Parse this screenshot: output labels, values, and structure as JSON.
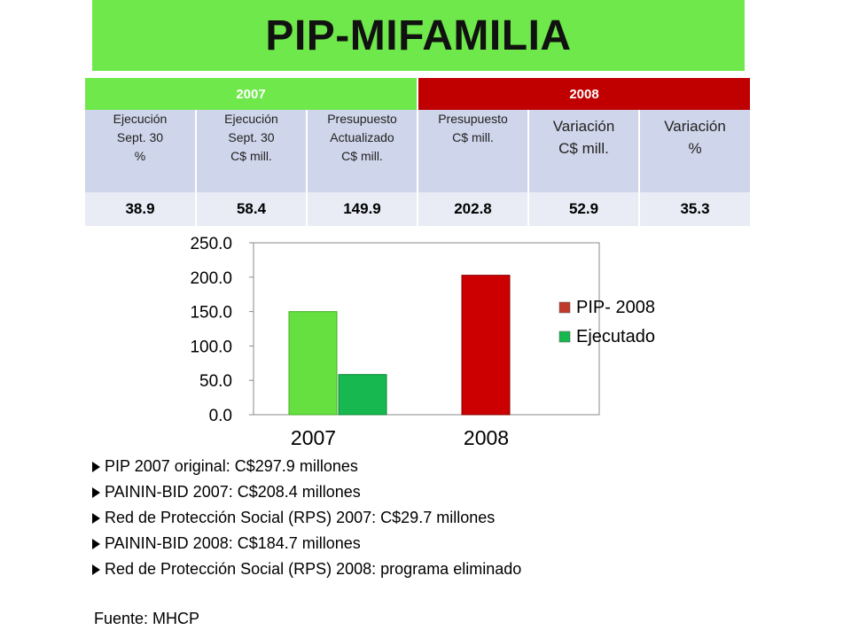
{
  "title": "PIP-MIFAMILIA",
  "table": {
    "year_headers": [
      "2007",
      "2008"
    ],
    "columns": [
      "Ejecución\nSept. 30\n%",
      "Ejecución\nSept. 30\nC$ mill.",
      "Presupuesto\nActualizado\nC$ mill.",
      "Presupuesto\nC$ mill.",
      "Variación\nC$ mill.",
      "Variación\n%"
    ],
    "values": [
      "38.9",
      "58.4",
      "149.9",
      "202.8",
      "52.9",
      "35.3"
    ]
  },
  "chart_data": {
    "type": "bar",
    "categories": [
      "2007",
      "2008"
    ],
    "series": [
      {
        "name": "PIP- 2008",
        "values": [
          149.9,
          202.8
        ]
      },
      {
        "name": "Ejecutado",
        "values": [
          58.4,
          null
        ]
      }
    ],
    "ylim": [
      0,
      250
    ],
    "yticks": [
      "0.0",
      "50.0",
      "100.0",
      "150.0",
      "200.0",
      "250.0"
    ],
    "legend_position": "right",
    "colors": {
      "budget_2007": "#66e040",
      "budget_2008": "#cc0000",
      "executed": "#17b84f",
      "legend_pip": "#c0392b",
      "legend_exec": "#17b84f"
    }
  },
  "bullets": [
    "PIP 2007 original: C$297.9 millones",
    "PAININ-BID 2007: C$208.4 millones",
    "Red de Protección Social (RPS) 2007: C$29.7 millones",
    "PAININ-BID 2008: C$184.7 millones",
    "Red de Protección Social (RPS) 2008:  programa eliminado"
  ],
  "source": "Fuente: MHCP"
}
